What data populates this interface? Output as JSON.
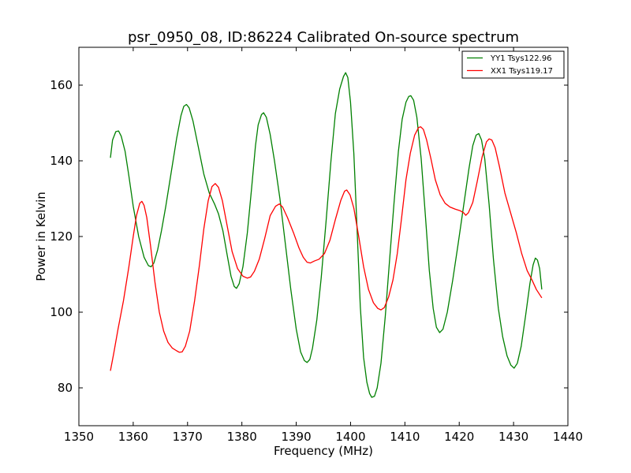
{
  "chart_data": {
    "type": "line",
    "title": "psr_0950_08, ID:86224 Calibrated On-source spectrum",
    "xlabel": "Frequency (MHz)",
    "ylabel": "Power in Kelvin",
    "xlim": [
      1350,
      1440
    ],
    "ylim": [
      70,
      170
    ],
    "xticks": [
      1350,
      1360,
      1370,
      1380,
      1390,
      1400,
      1410,
      1420,
      1430,
      1440
    ],
    "yticks": [
      80,
      100,
      120,
      140,
      160
    ],
    "xtick_labels": [
      "1350",
      "1360",
      "1370",
      "1380",
      "1390",
      "1400",
      "1410",
      "1420",
      "1430",
      "1440"
    ],
    "ytick_labels": [
      "80",
      "100",
      "120",
      "140",
      "160"
    ],
    "grid": false,
    "legend_position": "top-right",
    "series": [
      {
        "name": "YY1 Tsys122.96",
        "color": "#008000",
        "points": [
          [
            1355.8,
            140.8
          ],
          [
            1356.2,
            145.5
          ],
          [
            1356.8,
            147.7
          ],
          [
            1357.3,
            147.9
          ],
          [
            1357.8,
            146.5
          ],
          [
            1358.5,
            142.5
          ],
          [
            1359.2,
            136.0
          ],
          [
            1360.0,
            128.0
          ],
          [
            1361.0,
            120.0
          ],
          [
            1362.0,
            114.5
          ],
          [
            1362.8,
            112.3
          ],
          [
            1363.3,
            112.0
          ],
          [
            1363.8,
            113.0
          ],
          [
            1364.5,
            116.5
          ],
          [
            1365.2,
            121.5
          ],
          [
            1366.0,
            128.0
          ],
          [
            1367.0,
            137.0
          ],
          [
            1368.0,
            146.0
          ],
          [
            1368.8,
            152.0
          ],
          [
            1369.3,
            154.4
          ],
          [
            1369.8,
            154.9
          ],
          [
            1370.3,
            154.0
          ],
          [
            1371.0,
            150.5
          ],
          [
            1372.0,
            143.5
          ],
          [
            1373.0,
            136.5
          ],
          [
            1374.0,
            131.5
          ],
          [
            1375.0,
            128.5
          ],
          [
            1375.7,
            126.0
          ],
          [
            1376.5,
            121.5
          ],
          [
            1377.3,
            115.0
          ],
          [
            1378.0,
            109.5
          ],
          [
            1378.6,
            106.8
          ],
          [
            1379.0,
            106.3
          ],
          [
            1379.5,
            107.5
          ],
          [
            1380.2,
            112.0
          ],
          [
            1381.0,
            121.0
          ],
          [
            1381.8,
            133.0
          ],
          [
            1382.5,
            144.0
          ],
          [
            1383.0,
            149.5
          ],
          [
            1383.6,
            152.2
          ],
          [
            1384.0,
            152.7
          ],
          [
            1384.5,
            151.5
          ],
          [
            1385.2,
            147.0
          ],
          [
            1386.0,
            140.0
          ],
          [
            1387.0,
            130.0
          ],
          [
            1388.0,
            118.0
          ],
          [
            1389.0,
            106.0
          ],
          [
            1390.0,
            95.5
          ],
          [
            1390.8,
            89.5
          ],
          [
            1391.5,
            87.2
          ],
          [
            1392.0,
            86.7
          ],
          [
            1392.5,
            87.5
          ],
          [
            1393.0,
            90.5
          ],
          [
            1393.8,
            98.0
          ],
          [
            1394.6,
            109.0
          ],
          [
            1395.5,
            124.0
          ],
          [
            1396.4,
            140.0
          ],
          [
            1397.2,
            152.5
          ],
          [
            1398.0,
            159.0
          ],
          [
            1398.7,
            162.3
          ],
          [
            1399.1,
            163.3
          ],
          [
            1399.5,
            162.0
          ],
          [
            1400.0,
            155.5
          ],
          [
            1400.6,
            142.0
          ],
          [
            1401.2,
            122.0
          ],
          [
            1401.8,
            101.5
          ],
          [
            1402.4,
            88.0
          ],
          [
            1403.0,
            81.5
          ],
          [
            1403.5,
            78.5
          ],
          [
            1403.9,
            77.5
          ],
          [
            1404.4,
            77.8
          ],
          [
            1404.9,
            80.0
          ],
          [
            1405.6,
            86.5
          ],
          [
            1406.4,
            99.0
          ],
          [
            1407.2,
            114.0
          ],
          [
            1408.0,
            129.0
          ],
          [
            1408.8,
            142.5
          ],
          [
            1409.5,
            151.0
          ],
          [
            1410.2,
            155.5
          ],
          [
            1410.7,
            157.0
          ],
          [
            1411.1,
            157.2
          ],
          [
            1411.6,
            156.0
          ],
          [
            1412.2,
            151.5
          ],
          [
            1413.0,
            140.5
          ],
          [
            1413.8,
            125.0
          ],
          [
            1414.5,
            111.0
          ],
          [
            1415.2,
            101.0
          ],
          [
            1415.8,
            96.0
          ],
          [
            1416.4,
            94.6
          ],
          [
            1417.0,
            95.5
          ],
          [
            1417.8,
            100.0
          ],
          [
            1418.8,
            108.5
          ],
          [
            1419.8,
            118.0
          ],
          [
            1420.8,
            128.0
          ],
          [
            1421.8,
            138.0
          ],
          [
            1422.5,
            144.0
          ],
          [
            1423.1,
            146.8
          ],
          [
            1423.6,
            147.2
          ],
          [
            1424.1,
            145.5
          ],
          [
            1424.7,
            140.5
          ],
          [
            1425.5,
            128.5
          ],
          [
            1426.3,
            114.0
          ],
          [
            1427.2,
            101.0
          ],
          [
            1428.0,
            93.5
          ],
          [
            1428.8,
            88.5
          ],
          [
            1429.5,
            86.0
          ],
          [
            1430.1,
            85.2
          ],
          [
            1430.7,
            86.5
          ],
          [
            1431.4,
            91.0
          ],
          [
            1432.2,
            99.0
          ],
          [
            1433.0,
            107.5
          ],
          [
            1433.6,
            112.5
          ],
          [
            1434.0,
            114.3
          ],
          [
            1434.4,
            113.8
          ],
          [
            1434.8,
            111.5
          ],
          [
            1435.2,
            106.0
          ]
        ]
      },
      {
        "name": "XX1 Tsys119.17",
        "color": "#ff0000",
        "points": [
          [
            1355.8,
            84.5
          ],
          [
            1356.4,
            89.0
          ],
          [
            1357.2,
            95.5
          ],
          [
            1358.2,
            103.0
          ],
          [
            1359.2,
            112.0
          ],
          [
            1360.0,
            120.0
          ],
          [
            1360.6,
            125.5
          ],
          [
            1361.2,
            128.8
          ],
          [
            1361.6,
            129.3
          ],
          [
            1362.0,
            128.2
          ],
          [
            1362.5,
            125.0
          ],
          [
            1363.2,
            117.5
          ],
          [
            1364.0,
            108.0
          ],
          [
            1364.8,
            100.0
          ],
          [
            1365.6,
            95.0
          ],
          [
            1366.4,
            92.0
          ],
          [
            1367.2,
            90.5
          ],
          [
            1368.0,
            89.8
          ],
          [
            1368.5,
            89.4
          ],
          [
            1369.0,
            89.5
          ],
          [
            1369.6,
            91.0
          ],
          [
            1370.4,
            95.0
          ],
          [
            1371.3,
            103.0
          ],
          [
            1372.2,
            112.5
          ],
          [
            1373.0,
            122.0
          ],
          [
            1373.8,
            129.5
          ],
          [
            1374.5,
            133.2
          ],
          [
            1375.1,
            134.0
          ],
          [
            1375.7,
            133.0
          ],
          [
            1376.4,
            129.5
          ],
          [
            1377.2,
            123.5
          ],
          [
            1378.2,
            116.0
          ],
          [
            1379.2,
            111.5
          ],
          [
            1380.2,
            109.5
          ],
          [
            1381.0,
            109.0
          ],
          [
            1381.6,
            109.3
          ],
          [
            1382.3,
            110.8
          ],
          [
            1383.2,
            114.0
          ],
          [
            1384.2,
            119.5
          ],
          [
            1385.2,
            125.5
          ],
          [
            1386.2,
            128.0
          ],
          [
            1386.9,
            128.6
          ],
          [
            1387.5,
            127.8
          ],
          [
            1388.4,
            125.0
          ],
          [
            1389.5,
            121.0
          ],
          [
            1390.5,
            117.0
          ],
          [
            1391.3,
            114.5
          ],
          [
            1392.0,
            113.2
          ],
          [
            1392.6,
            113.0
          ],
          [
            1393.3,
            113.5
          ],
          [
            1394.2,
            114.0
          ],
          [
            1395.2,
            115.5
          ],
          [
            1396.2,
            119.0
          ],
          [
            1397.2,
            124.5
          ],
          [
            1398.2,
            129.5
          ],
          [
            1398.9,
            132.0
          ],
          [
            1399.3,
            132.3
          ],
          [
            1399.9,
            131.0
          ],
          [
            1400.6,
            127.5
          ],
          [
            1401.5,
            120.0
          ],
          [
            1402.4,
            112.0
          ],
          [
            1403.3,
            106.0
          ],
          [
            1404.2,
            102.5
          ],
          [
            1405.0,
            101.0
          ],
          [
            1405.6,
            100.6
          ],
          [
            1406.2,
            101.2
          ],
          [
            1407.0,
            104.0
          ],
          [
            1407.8,
            108.5
          ],
          [
            1408.6,
            115.5
          ],
          [
            1409.4,
            125.0
          ],
          [
            1410.2,
            135.0
          ],
          [
            1411.0,
            142.0
          ],
          [
            1411.8,
            146.8
          ],
          [
            1412.5,
            148.8
          ],
          [
            1412.9,
            149.0
          ],
          [
            1413.4,
            148.3
          ],
          [
            1414.0,
            145.5
          ],
          [
            1414.8,
            140.5
          ],
          [
            1415.6,
            135.0
          ],
          [
            1416.5,
            131.0
          ],
          [
            1417.4,
            128.8
          ],
          [
            1418.3,
            127.8
          ],
          [
            1419.3,
            127.2
          ],
          [
            1420.2,
            126.8
          ],
          [
            1420.8,
            126.3
          ],
          [
            1421.2,
            125.6
          ],
          [
            1421.7,
            126.3
          ],
          [
            1422.5,
            129.0
          ],
          [
            1423.3,
            134.5
          ],
          [
            1424.2,
            141.0
          ],
          [
            1425.0,
            145.0
          ],
          [
            1425.5,
            145.8
          ],
          [
            1426.0,
            145.5
          ],
          [
            1426.6,
            143.5
          ],
          [
            1427.4,
            138.5
          ],
          [
            1428.4,
            131.5
          ],
          [
            1429.5,
            126.0
          ],
          [
            1430.5,
            121.0
          ],
          [
            1431.5,
            115.5
          ],
          [
            1432.5,
            111.0
          ],
          [
            1433.4,
            108.5
          ],
          [
            1434.2,
            106.0
          ],
          [
            1435.2,
            103.8
          ]
        ]
      }
    ]
  }
}
